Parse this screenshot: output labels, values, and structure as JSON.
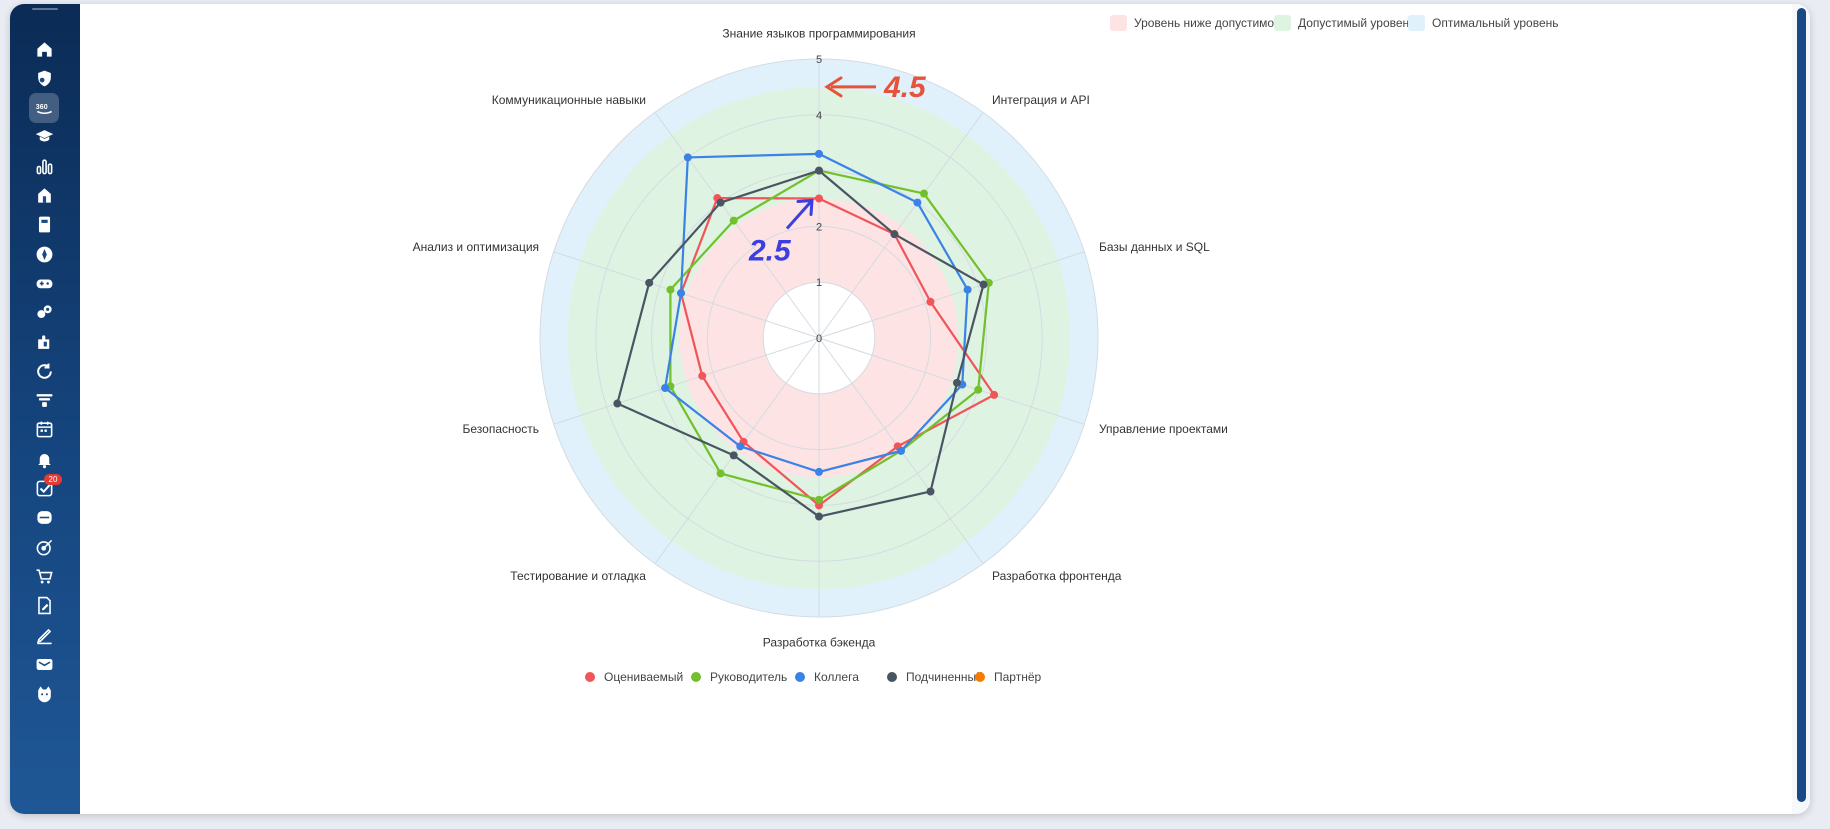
{
  "sidebar": {
    "items": [
      {
        "icon": "home-icon"
      },
      {
        "icon": "shield-icon"
      },
      {
        "icon": "feedback-360-icon",
        "active": true
      },
      {
        "icon": "graduation-cap-icon"
      },
      {
        "icon": "bar-chart-icon"
      },
      {
        "icon": "house-icon"
      },
      {
        "icon": "document-icon"
      },
      {
        "icon": "compass-icon"
      },
      {
        "icon": "gamepad-icon"
      },
      {
        "icon": "users-icon"
      },
      {
        "icon": "puzzle-icon"
      },
      {
        "icon": "refresh-icon"
      },
      {
        "icon": "funnel-icon"
      },
      {
        "icon": "calendar-icon"
      },
      {
        "icon": "bell-icon"
      },
      {
        "icon": "tasks-icon",
        "badge": "20"
      },
      {
        "icon": "inbox-icon"
      },
      {
        "icon": "target-icon"
      },
      {
        "icon": "cart-icon"
      },
      {
        "icon": "file-edit-icon"
      },
      {
        "icon": "pen-icon"
      },
      {
        "icon": "mail-icon"
      },
      {
        "icon": "cat-icon"
      }
    ]
  },
  "zones_legend": [
    {
      "label": "Уровень ниже допустимого",
      "color": "#fde3e3"
    },
    {
      "label": "Допустимый уровень",
      "color": "#dff3e3"
    },
    {
      "label": "Оптимальный уровень",
      "color": "#e1f1fb"
    }
  ],
  "annotations": [
    {
      "text": "4.5",
      "color": "#e5533b",
      "value": 4.5
    },
    {
      "text": "2.5",
      "color": "#3b3fe0",
      "value": 2.5
    }
  ],
  "chart_data": {
    "type": "radar",
    "axes": [
      "Знание языков программирования",
      "Интеграция и API",
      "Базы данных и SQL",
      "Управление проектами",
      "Разработка фронтенда",
      "Разработка бэкенда",
      "Тестирование и отладка",
      "Безопасность",
      "Анализ и оптимизация",
      "Коммуникационные навыки"
    ],
    "rlim": [
      0,
      5
    ],
    "ticks": [
      "0",
      "1",
      "2",
      "3",
      "4",
      "5"
    ],
    "zones": [
      {
        "name": "Уровень ниже допустимого",
        "from": 1,
        "to": 2.5,
        "color": "#fde3e3"
      },
      {
        "name": "Допустимый уровень",
        "from": 2.5,
        "to": 4.5,
        "color": "#dff3e3"
      },
      {
        "name": "Оптимальный уровень",
        "from": 4.5,
        "to": 5,
        "color": "#e1f1fb"
      }
    ],
    "series": [
      {
        "name": "Оцениваемый",
        "color": "#f0555a",
        "values": [
          2.5,
          2.3,
          2.1,
          3.3,
          2.4,
          3.0,
          2.3,
          2.2,
          2.6,
          3.1
        ]
      },
      {
        "name": "Руководитель",
        "color": "#72c02c",
        "values": [
          3.0,
          3.2,
          3.2,
          3.0,
          2.5,
          2.9,
          3.0,
          2.8,
          2.8,
          2.6
        ]
      },
      {
        "name": "Коллега",
        "color": "#3b82e6",
        "values": [
          3.3,
          3.0,
          2.8,
          2.7,
          2.5,
          2.4,
          2.4,
          2.9,
          2.6,
          4.0
        ]
      },
      {
        "name": "Подчиненный",
        "color": "#4a5563",
        "values": [
          3.0,
          2.3,
          3.1,
          2.6,
          3.4,
          3.2,
          2.6,
          3.8,
          3.2,
          3.0
        ]
      },
      {
        "name": "Партнёр",
        "color": "#f57c00",
        "values": []
      }
    ],
    "legend_position": "bottom"
  }
}
